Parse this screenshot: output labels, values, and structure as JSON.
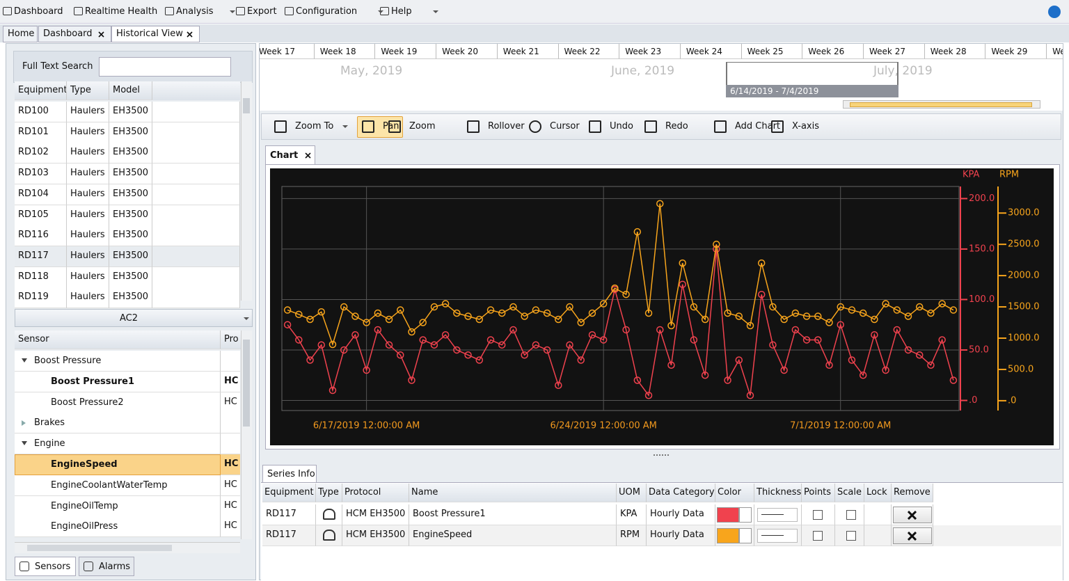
{
  "menu": [
    "Dashboard",
    "Realtime Health",
    "Analysis",
    "Export",
    "Configuration",
    "Help"
  ],
  "tabs": [
    "Home",
    "Dashboard",
    "Historical View"
  ],
  "search_label": "Full Text Search",
  "equipment_table": {
    "headers": [
      "Equipment",
      "Type",
      "Model"
    ],
    "selected_row": 7,
    "rows": [
      [
        "RD100",
        "Haulers",
        "EH3500"
      ],
      [
        "RD101",
        "Haulers",
        "EH3500"
      ],
      [
        "RD102",
        "Haulers",
        "EH3500"
      ],
      [
        "RD103",
        "Haulers",
        "EH3500"
      ],
      [
        "RD104",
        "Haulers",
        "EH3500"
      ],
      [
        "RD105",
        "Haulers",
        "EH3500"
      ],
      [
        "RD116",
        "Haulers",
        "EH3500"
      ],
      [
        "RD117",
        "Haulers",
        "EH3500"
      ],
      [
        "RD118",
        "Haulers",
        "EH3500"
      ],
      [
        "RD119",
        "Haulers",
        "EH3500"
      ]
    ]
  },
  "sensor_group": "AC2",
  "sensor_table": {
    "headers": [
      "Sensor",
      "Pro"
    ],
    "rows": [
      {
        "name": "Boost Pressure",
        "group": true,
        "expanded": true
      },
      {
        "name": "Boost Pressure1",
        "protocol": "HC",
        "bold": true
      },
      {
        "name": "Boost Pressure2",
        "protocol": "HC"
      },
      {
        "name": "Brakes",
        "group": true,
        "expanded": false
      },
      {
        "name": "Engine",
        "group": true,
        "expanded": true
      },
      {
        "name": "EngineSpeed",
        "protocol": "HC",
        "bold": true,
        "selected": true
      },
      {
        "name": "EngineCoolantWaterTemp",
        "protocol": "HC"
      },
      {
        "name": "EngineOilTemp",
        "protocol": "HC"
      },
      {
        "name": "EngineOilPress",
        "protocol": "HC"
      }
    ]
  },
  "bottom_tabs": [
    "Sensors",
    "Alarms"
  ],
  "timeline": {
    "weeks": [
      "Week 17",
      "Week 18",
      "Week 19",
      "Week 20",
      "Week 21",
      "Week 22",
      "Week 23",
      "Week 24",
      "Week 25",
      "Week 26",
      "Week 27",
      "Week 28",
      "Week 29",
      "Wee"
    ],
    "months": [
      "May, 2019",
      "June, 2019",
      "July, 2019"
    ],
    "range": "6/14/2019 - 7/4/2019"
  },
  "toolbar": [
    "Zoom To",
    "Pan",
    "Zoom",
    "Rollover",
    "Cursor",
    "Undo",
    "Redo",
    "Add Chart",
    "X-axis"
  ],
  "chart_tab": "Chart",
  "chart_data": {
    "type": "line",
    "grid": true,
    "x": [
      "6/14/2019 4:00:00 PM",
      "6/15/2019 12:00:00 AM",
      "6/15/2019 8:00:00 AM",
      "6/15/2019 4:00:00 PM",
      "6/16/2019 12:00:00 AM",
      "6/16/2019 8:00:00 AM",
      "6/16/2019 4:00:00 PM",
      "6/17/2019 12:00:00 AM",
      "6/17/2019 8:00:00 AM",
      "6/17/2019 4:00:00 PM",
      "6/18/2019 12:00:00 AM",
      "6/18/2019 8:00:00 AM",
      "6/18/2019 4:00:00 PM",
      "6/19/2019 12:00:00 AM",
      "6/19/2019 8:00:00 AM",
      "6/19/2019 4:00:00 PM",
      "6/20/2019 12:00:00 AM",
      "6/20/2019 8:00:00 AM",
      "6/20/2019 4:00:00 PM",
      "6/21/2019 12:00:00 AM",
      "6/21/2019 8:00:00 AM",
      "6/21/2019 4:00:00 PM",
      "6/22/2019 12:00:00 AM",
      "6/22/2019 8:00:00 AM",
      "6/22/2019 4:00:00 PM",
      "6/23/2019 12:00:00 AM",
      "6/23/2019 8:00:00 AM",
      "6/23/2019 4:00:00 PM",
      "6/24/2019 12:00:00 AM",
      "6/24/2019 8:00:00 AM",
      "6/24/2019 4:00:00 PM",
      "6/25/2019 12:00:00 AM",
      "6/25/2019 8:00:00 AM",
      "6/25/2019 4:00:00 PM",
      "6/26/2019 12:00:00 AM",
      "6/26/2019 8:00:00 AM",
      "6/26/2019 4:00:00 PM",
      "6/27/2019 12:00:00 AM",
      "6/27/2019 8:00:00 AM",
      "6/27/2019 4:00:00 PM",
      "6/28/2019 12:00:00 AM",
      "6/28/2019 8:00:00 AM",
      "6/28/2019 4:00:00 PM",
      "6/29/2019 12:00:00 AM",
      "6/29/2019 8:00:00 AM",
      "6/29/2019 4:00:00 PM",
      "6/30/2019 12:00:00 AM",
      "6/30/2019 8:00:00 AM",
      "6/30/2019 4:00:00 PM",
      "7/1/2019 12:00:00 AM",
      "7/1/2019 8:00:00 AM",
      "7/1/2019 4:00:00 PM",
      "7/2/2019 12:00:00 AM",
      "7/2/2019 8:00:00 AM",
      "7/2/2019 4:00:00 PM",
      "7/3/2019 12:00:00 AM",
      "7/3/2019 8:00:00 AM",
      "7/3/2019 4:00:00 PM",
      "7/4/2019 12:00:00 AM",
      "7/4/2019 8:00:00 AM"
    ],
    "xlim": [
      "6/14/2019 12:00:00 PM",
      "7/4/2019 12:00:00 PM"
    ],
    "xticks": [
      "6/17/2019 12:00:00 AM",
      "6/24/2019 12:00:00 AM",
      "7/1/2019 12:00:00 AM"
    ],
    "ylabel": "KPA",
    "y2label": "RPM",
    "ylim": [
      -10,
      212
    ],
    "yticks": [
      {
        "value": 0,
        "label": ".0"
      },
      {
        "value": 50,
        "label": "50.0"
      },
      {
        "value": 100,
        "label": "100.0"
      },
      {
        "value": 150,
        "label": "150.0"
      },
      {
        "value": 200,
        "label": "200.0"
      }
    ],
    "y2lim": [
      -157,
      3425
    ],
    "y2ticks": [
      {
        "value": 0,
        "label": ".0"
      },
      {
        "value": 500,
        "label": "500.0"
      },
      {
        "value": 1000,
        "label": "1000.0"
      },
      {
        "value": 1500,
        "label": "1500.0"
      },
      {
        "value": 2000,
        "label": "2000.0"
      },
      {
        "value": 2500,
        "label": "2500.0"
      },
      {
        "value": 3000,
        "label": "3000.0"
      }
    ],
    "series": [
      {
        "name": "Boost Pressure1",
        "color": "#f0424e",
        "axis": "y",
        "values": [
          75,
          60,
          40,
          55,
          10,
          50,
          65,
          30,
          70,
          55,
          45,
          20,
          60,
          55,
          65,
          50,
          45,
          40,
          60,
          55,
          70,
          45,
          55,
          50,
          15,
          55,
          40,
          65,
          60,
          110,
          70,
          20,
          5,
          70,
          35,
          115,
          60,
          25,
          150,
          20,
          40,
          5,
          105,
          55,
          30,
          70,
          60,
          60,
          35,
          75,
          40,
          25,
          65,
          30,
          70,
          50,
          45,
          35,
          60,
          20
        ]
      },
      {
        "name": "EngineSpeed",
        "color": "#f8a51c",
        "axis": "y2",
        "values": [
          1450,
          1380,
          1300,
          1420,
          900,
          1500,
          1350,
          1250,
          1400,
          1300,
          1450,
          1100,
          1250,
          1500,
          1550,
          1400,
          1350,
          1300,
          1450,
          1400,
          1500,
          1350,
          1450,
          1400,
          1300,
          1500,
          1250,
          1400,
          1550,
          1800,
          1700,
          2700,
          1400,
          3150,
          1200,
          2200,
          1500,
          1300,
          2500,
          1400,
          1350,
          1200,
          2200,
          1500,
          1300,
          1400,
          1350,
          1350,
          1250,
          1500,
          1450,
          1400,
          1300,
          1550,
          1450,
          1350,
          1500,
          1400,
          1550,
          1450
        ]
      }
    ]
  },
  "series_info": {
    "title": "Series Info",
    "headers": [
      "Equipment",
      "Type",
      "Protocol",
      "Name",
      "UOM",
      "Data Category",
      "Color",
      "Thickness",
      "Points",
      "Scale",
      "Lock",
      "Remove"
    ],
    "rows": [
      [
        "RD117",
        "HCM EH3500",
        "Boost Pressure1",
        "KPA",
        "Hourly Data"
      ],
      [
        "RD117",
        "HCM EH3500",
        "EngineSpeed",
        "RPM",
        "Hourly Data"
      ]
    ]
  }
}
